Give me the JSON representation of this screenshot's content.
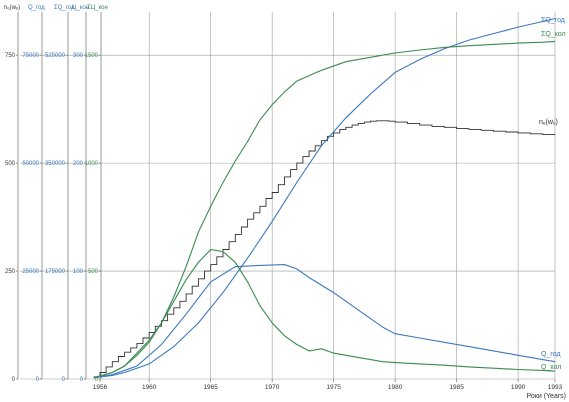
{
  "colors": {
    "grid": "#9aa09a",
    "axis": "#555555",
    "oil": "#3b78c0",
    "gas": "#3a8a50",
    "wells": "#333333",
    "text": "#333333"
  },
  "axes": [
    {
      "header": "nₑ(wₑ)",
      "color": "#333333",
      "ticks": [
        "750",
        "500",
        "250",
        "0"
      ]
    },
    {
      "header": "Q_год",
      "color": "#3b78c0",
      "ticks": [
        "75000",
        "50000",
        "25000",
        "0"
      ]
    },
    {
      "header": "ΣQ_год",
      "color": "#3b78c0",
      "ticks": [
        "525000",
        "350000",
        "175000",
        "0"
      ]
    },
    {
      "header": "Ц_кон",
      "color": "#3b78c0",
      "ticks": [
        "300",
        "200",
        "100",
        "0"
      ]
    },
    {
      "header": "ΣЦ_кон",
      "color": "#3a8a50",
      "ticks": [
        "1500",
        "1000",
        "500",
        "0"
      ]
    }
  ],
  "xaxis": {
    "label": "Роки (Years)",
    "ticks": [
      "1956",
      "1960",
      "1965",
      "1970",
      "1975",
      "1980",
      "1985",
      "1990",
      "1993"
    ]
  },
  "chart_data": {
    "type": "line",
    "xlabel": "Роки (Years)",
    "xlim": [
      1956,
      1993
    ],
    "ylim": [
      0,
      850
    ],
    "y_unit_axis": "nₑ(wₑ)",
    "series": [
      {
        "name": "nₑ(wₑ)",
        "label": "nₑ(wₑ)",
        "color": "#333333",
        "step": true,
        "x": [
          1955.5,
          1956,
          1956.5,
          1957,
          1957.5,
          1958,
          1958.5,
          1959,
          1959.5,
          1960,
          1960.5,
          1961,
          1961.5,
          1962,
          1962.5,
          1963,
          1963.5,
          1964,
          1964.5,
          1965,
          1965.5,
          1966,
          1966.5,
          1967,
          1967.5,
          1968,
          1968.5,
          1969,
          1969.5,
          1970,
          1970.5,
          1971,
          1971.5,
          1972,
          1972.5,
          1973,
          1973.5,
          1974,
          1974.5,
          1975,
          1975.5,
          1976,
          1976.5,
          1977,
          1977.5,
          1978,
          1978.5,
          1979,
          1979.5,
          1980,
          1981,
          1982,
          1983,
          1984,
          1985,
          1986,
          1987,
          1988,
          1989,
          1990,
          1991,
          1992,
          1993
        ],
        "y": [
          5,
          15,
          28,
          40,
          52,
          62,
          72,
          82,
          95,
          108,
          122,
          135,
          150,
          165,
          180,
          197,
          215,
          232,
          250,
          265,
          283,
          300,
          318,
          335,
          352,
          370,
          385,
          400,
          418,
          432,
          450,
          468,
          485,
          500,
          515,
          528,
          540,
          552,
          562,
          570,
          578,
          583,
          588,
          592,
          595,
          597,
          598,
          598,
          597,
          595,
          592,
          588,
          585,
          583,
          580,
          578,
          576,
          574,
          572,
          570,
          568,
          566,
          565
        ]
      },
      {
        "name": "ΣQ_год",
        "label": "ΣQ_год",
        "color": "#3b78c0",
        "x": [
          1955.5,
          1957,
          1958,
          1960,
          1962,
          1964,
          1966,
          1968,
          1970,
          1972,
          1974,
          1976,
          1978,
          1980,
          1982,
          1984,
          1986,
          1988,
          1990,
          1992,
          1993
        ],
        "y": [
          3,
          8,
          15,
          35,
          75,
          130,
          200,
          280,
          365,
          455,
          540,
          605,
          660,
          710,
          740,
          765,
          785,
          800,
          815,
          828,
          835
        ]
      },
      {
        "name": "ΣQ_кол",
        "label": "ΣQ_кол",
        "color": "#3a8a50",
        "x": [
          1955.5,
          1957,
          1958,
          1959,
          1960,
          1961,
          1962,
          1963,
          1964,
          1965,
          1966,
          1967,
          1968,
          1969,
          1970,
          1971,
          1972,
          1974,
          1976,
          1978,
          1980,
          1982,
          1984,
          1986,
          1988,
          1990,
          1992,
          1993
        ],
        "y": [
          3,
          15,
          30,
          55,
          85,
          130,
          190,
          260,
          340,
          400,
          455,
          505,
          550,
          600,
          635,
          665,
          690,
          715,
          735,
          745,
          755,
          762,
          768,
          772,
          775,
          778,
          780,
          782
        ]
      },
      {
        "name": "Q_год",
        "label": "Q_год",
        "color": "#3b78c0",
        "x": [
          1955.5,
          1957,
          1959,
          1961,
          1963,
          1965,
          1967,
          1969,
          1971,
          1972,
          1973,
          1975,
          1977,
          1979,
          1980,
          1982,
          1984,
          1986,
          1988,
          1990,
          1992,
          1993
        ],
        "y": [
          3,
          10,
          30,
          80,
          150,
          225,
          260,
          263,
          265,
          255,
          235,
          200,
          160,
          120,
          105,
          95,
          85,
          75,
          65,
          55,
          45,
          40
        ]
      },
      {
        "name": "Q_кол",
        "label": "Q_кол",
        "color": "#3a8a50",
        "x": [
          1955.5,
          1957,
          1958,
          1959,
          1960,
          1961,
          1962,
          1963,
          1964,
          1965,
          1966,
          1967,
          1968,
          1969,
          1970,
          1971,
          1972,
          1973,
          1974,
          1975,
          1976,
          1977,
          1978,
          1979,
          1980,
          1982,
          1984,
          1986,
          1988,
          1990,
          1992,
          1993
        ],
        "y": [
          3,
          15,
          30,
          60,
          90,
          130,
          180,
          230,
          270,
          300,
          295,
          270,
          225,
          170,
          130,
          100,
          80,
          65,
          70,
          60,
          55,
          50,
          45,
          40,
          38,
          35,
          32,
          28,
          25,
          22,
          20,
          18
        ]
      }
    ]
  }
}
